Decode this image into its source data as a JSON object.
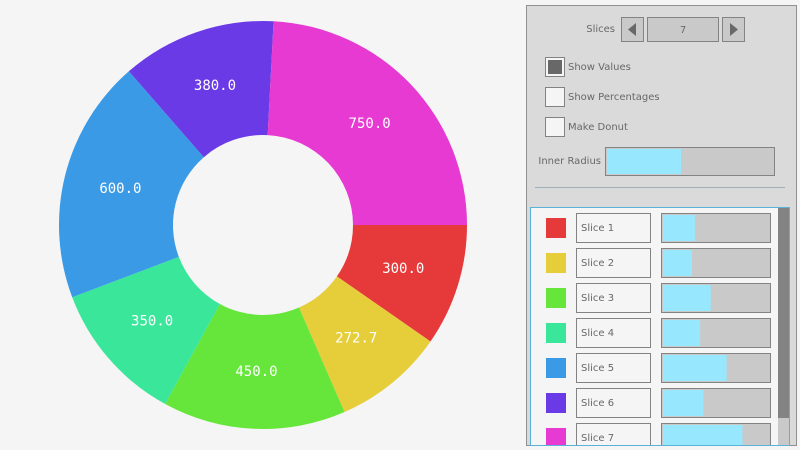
{
  "chart_data": {
    "type": "pie",
    "categories": [
      "Slice 1",
      "Slice 2",
      "Slice 3",
      "Slice 4",
      "Slice 5",
      "Slice 6",
      "Slice 7"
    ],
    "values": [
      300,
      272.7,
      450,
      350,
      600,
      380,
      750
    ],
    "value_labels": [
      "300.0",
      "272.7",
      "450.0",
      "350.0",
      "600.0",
      "380.0",
      "750.0"
    ],
    "colors": [
      "#e6393a",
      "#e6cd3a",
      "#66e63a",
      "#3ae69a",
      "#3a9ae6",
      "#6a3ae6",
      "#e63ad2"
    ],
    "show_values": true,
    "show_percentages": false,
    "donut": true
  },
  "controls": {
    "slices_label": "Slices",
    "slices": 7,
    "show_values_label": "Show Values",
    "show_percentages_label": "Show Percentages",
    "make_donut_label": "Make Donut",
    "inner_radius_label": "Inner Radius",
    "slider_range": [
      0,
      1000
    ]
  }
}
